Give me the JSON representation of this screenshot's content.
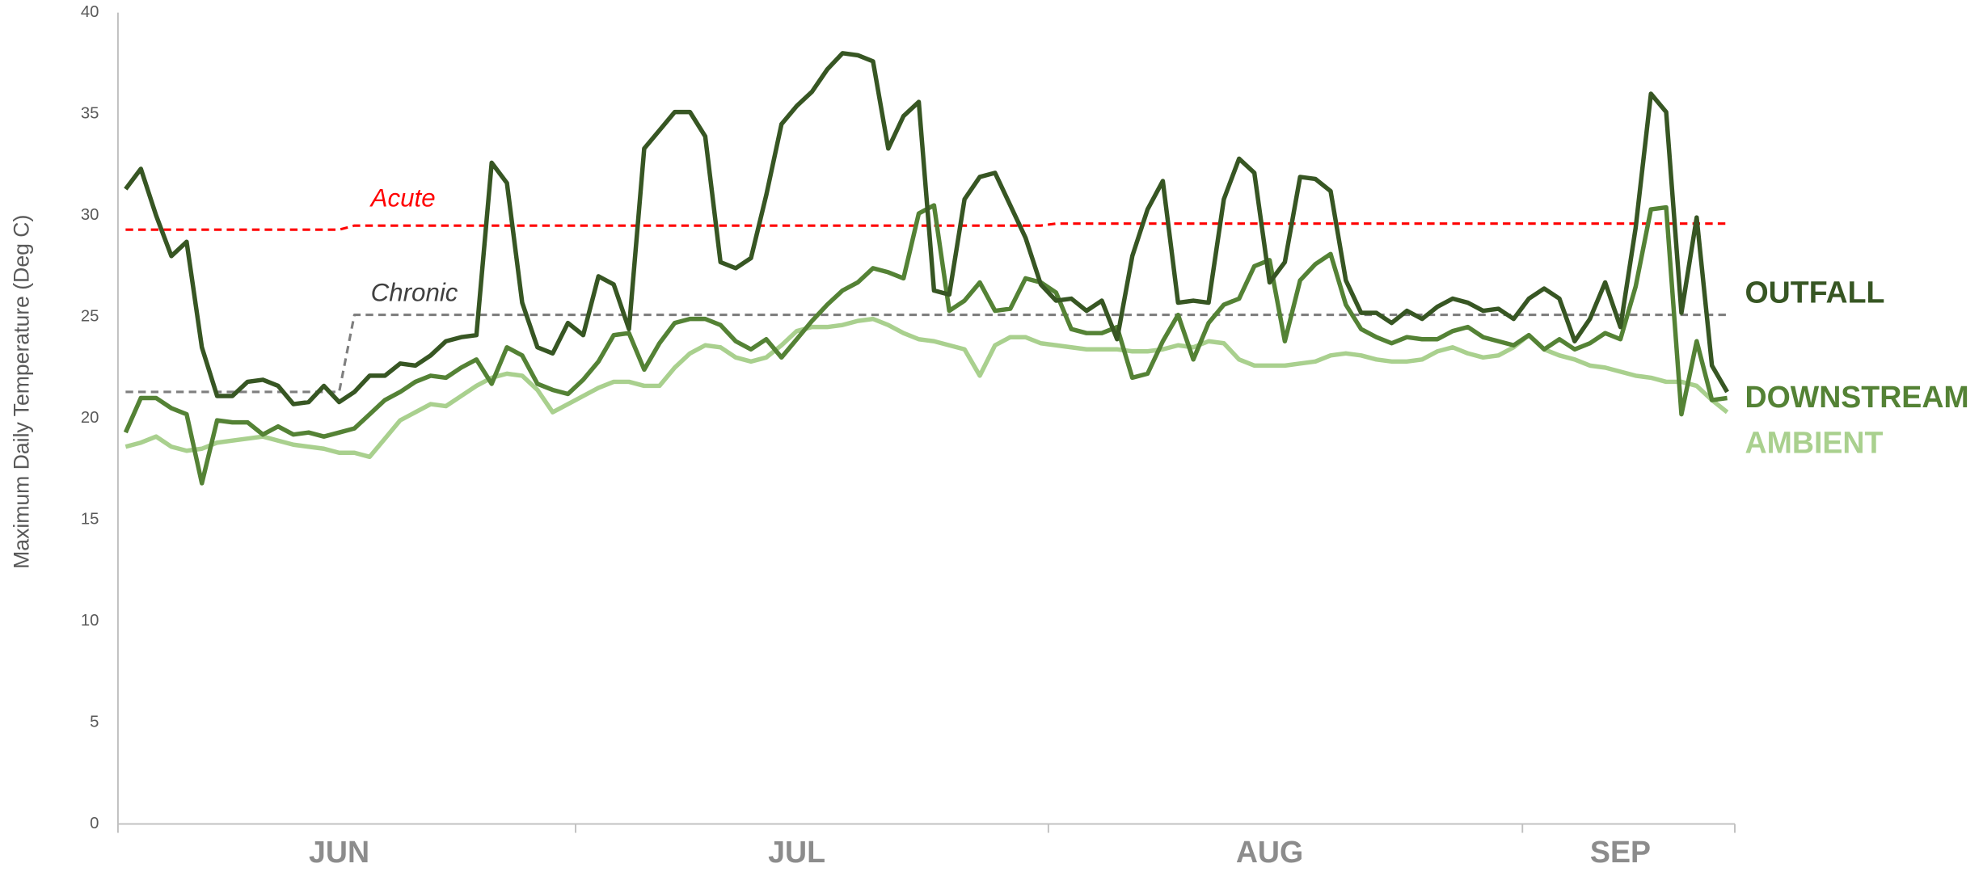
{
  "chart_data": {
    "type": "line",
    "y_label": "Maximum Daily Temperature (Deg C)",
    "categories": [
      null,
      null,
      null,
      null,
      null,
      null,
      null,
      null,
      null,
      null,
      null,
      null,
      null,
      null,
      "JUN",
      null,
      null,
      null,
      null,
      null,
      null,
      null,
      null,
      null,
      null,
      null,
      null,
      null,
      null,
      null,
      null,
      null,
      null,
      null,
      null,
      null,
      null,
      null,
      null,
      null,
      null,
      null,
      null,
      null,
      "JUL",
      null,
      null,
      null,
      null,
      null,
      null,
      null,
      null,
      null,
      null,
      null,
      null,
      null,
      null,
      null,
      null,
      null,
      null,
      null,
      null,
      null,
      null,
      null,
      null,
      null,
      null,
      null,
      null,
      null,
      null,
      "AUG",
      null,
      null,
      null,
      null,
      null,
      null,
      null,
      null,
      null,
      null,
      null,
      null,
      null,
      null,
      null,
      null,
      null,
      null,
      null,
      null,
      null,
      null,
      "SEP",
      null,
      null,
      null,
      null,
      null,
      null,
      null
    ],
    "ylim": [
      0,
      40
    ],
    "yticks": [
      0,
      5,
      10,
      15,
      20,
      25,
      30,
      35,
      40
    ],
    "grid": false,
    "series": [
      {
        "name": "OUTFALL",
        "color": "#375623",
        "line_style": "solid",
        "values": [
          31.3,
          32.3,
          30.0,
          28.0,
          28.7,
          23.5,
          21.1,
          21.1,
          21.8,
          21.9,
          21.6,
          20.7,
          20.8,
          21.6,
          20.8,
          21.3,
          22.1,
          22.1,
          22.7,
          22.6,
          23.1,
          23.8,
          24.0,
          24.1,
          32.6,
          31.6,
          25.7,
          23.5,
          23.2,
          24.7,
          24.1,
          27.0,
          26.6,
          24.4,
          33.3,
          34.2,
          35.1,
          35.1,
          33.9,
          27.7,
          27.4,
          27.9,
          31.0,
          34.5,
          35.4,
          36.1,
          37.2,
          38.0,
          37.9,
          37.6,
          33.3,
          34.9,
          35.6,
          26.3,
          26.1,
          30.8,
          31.9,
          32.1,
          30.5,
          28.9,
          26.6,
          25.8,
          25.9,
          25.3,
          25.8,
          23.9,
          28.0,
          30.3,
          31.7,
          25.7,
          25.8,
          25.7,
          30.8,
          32.8,
          32.1,
          26.7,
          27.7,
          31.9,
          31.8,
          31.2,
          26.8,
          25.2,
          25.2,
          24.7,
          25.3,
          24.9,
          25.5,
          25.9,
          25.7,
          25.3,
          25.4,
          24.9,
          25.9,
          26.4,
          25.9,
          23.8,
          24.9,
          26.7,
          24.5,
          29.4,
          36.0,
          35.1,
          25.2,
          29.9,
          22.6,
          21.3
        ]
      },
      {
        "name": "DOWNSTREAM",
        "color": "#548235",
        "line_style": "solid",
        "values": [
          19.3,
          21.0,
          21.0,
          20.5,
          20.2,
          16.8,
          19.9,
          19.8,
          19.8,
          19.2,
          19.6,
          19.2,
          19.3,
          19.1,
          19.3,
          19.5,
          20.2,
          20.9,
          21.3,
          21.8,
          22.1,
          22.0,
          22.5,
          22.9,
          21.7,
          23.5,
          23.1,
          21.7,
          21.4,
          21.2,
          21.9,
          22.8,
          24.1,
          24.2,
          22.4,
          23.7,
          24.7,
          24.9,
          24.9,
          24.6,
          23.8,
          23.4,
          23.9,
          23.0,
          23.9,
          24.8,
          25.6,
          26.3,
          26.7,
          27.4,
          27.2,
          26.9,
          30.1,
          30.5,
          25.3,
          25.8,
          26.7,
          25.3,
          25.4,
          26.9,
          26.7,
          26.2,
          24.4,
          24.2,
          24.2,
          24.5,
          22.0,
          22.2,
          23.8,
          25.1,
          22.9,
          24.7,
          25.6,
          25.9,
          27.5,
          27.8,
          23.8,
          26.8,
          27.6,
          28.1,
          25.6,
          24.4,
          24.0,
          23.7,
          24.0,
          23.9,
          23.9,
          24.3,
          24.5,
          24.0,
          23.8,
          23.6,
          24.1,
          23.4,
          23.9,
          23.4,
          23.7,
          24.2,
          23.9,
          26.5,
          30.3,
          30.4,
          20.2,
          23.8,
          20.9,
          21.0
        ]
      },
      {
        "name": "AMBIENT",
        "color": "#a9d08e",
        "line_style": "solid",
        "values": [
          18.6,
          18.8,
          19.1,
          18.6,
          18.4,
          18.5,
          18.8,
          18.9,
          19.0,
          19.1,
          18.9,
          18.7,
          18.6,
          18.5,
          18.3,
          18.3,
          18.1,
          19.0,
          19.9,
          20.3,
          20.7,
          20.6,
          21.1,
          21.6,
          22.0,
          22.2,
          22.1,
          21.4,
          20.3,
          20.7,
          21.1,
          21.5,
          21.8,
          21.8,
          21.6,
          21.6,
          22.5,
          23.2,
          23.6,
          23.5,
          23.0,
          22.8,
          23.0,
          23.6,
          24.3,
          24.5,
          24.5,
          24.6,
          24.8,
          24.9,
          24.6,
          24.2,
          23.9,
          23.8,
          23.6,
          23.4,
          22.1,
          23.6,
          24.0,
          24.0,
          23.7,
          23.6,
          23.5,
          23.4,
          23.4,
          23.4,
          23.3,
          23.3,
          23.4,
          23.6,
          23.5,
          23.8,
          23.7,
          22.9,
          22.6,
          22.6,
          22.6,
          22.7,
          22.8,
          23.1,
          23.2,
          23.1,
          22.9,
          22.8,
          22.8,
          22.9,
          23.3,
          23.5,
          23.2,
          23.0,
          23.1,
          23.5,
          24.1,
          23.4,
          23.1,
          22.9,
          22.6,
          22.5,
          22.3,
          22.1,
          22.0,
          21.8,
          21.8,
          21.6,
          20.9,
          20.3
        ]
      },
      {
        "name": "Acute",
        "color": "#ff0000",
        "line_style": "dashed",
        "values": [
          29.3,
          29.3,
          29.3,
          29.3,
          29.3,
          29.3,
          29.3,
          29.3,
          29.3,
          29.3,
          29.3,
          29.3,
          29.3,
          29.3,
          29.3,
          29.5,
          29.5,
          29.5,
          29.5,
          29.5,
          29.5,
          29.5,
          29.5,
          29.5,
          29.5,
          29.5,
          29.5,
          29.5,
          29.5,
          29.5,
          29.5,
          29.5,
          29.5,
          29.5,
          29.5,
          29.5,
          29.5,
          29.5,
          29.5,
          29.5,
          29.5,
          29.5,
          29.5,
          29.5,
          29.5,
          29.5,
          29.5,
          29.5,
          29.5,
          29.5,
          29.5,
          29.5,
          29.5,
          29.5,
          29.5,
          29.5,
          29.5,
          29.5,
          29.5,
          29.5,
          29.5,
          29.6,
          29.6,
          29.6,
          29.6,
          29.6,
          29.6,
          29.6,
          29.6,
          29.6,
          29.6,
          29.6,
          29.6,
          29.6,
          29.6,
          29.6,
          29.6,
          29.6,
          29.6,
          29.6,
          29.6,
          29.6,
          29.6,
          29.6,
          29.6,
          29.6,
          29.6,
          29.6,
          29.6,
          29.6,
          29.6,
          29.6,
          29.6,
          29.6,
          29.6,
          29.6,
          29.6,
          29.6,
          29.6,
          29.6,
          29.6,
          29.6,
          29.6,
          29.6,
          29.6,
          29.6
        ]
      },
      {
        "name": "Chronic",
        "color": "#7f7f7f",
        "line_style": "dashed",
        "values": [
          21.3,
          21.3,
          21.3,
          21.3,
          21.3,
          21.3,
          21.3,
          21.3,
          21.3,
          21.3,
          21.3,
          21.3,
          21.3,
          21.3,
          21.3,
          25.1,
          25.1,
          25.1,
          25.1,
          25.1,
          25.1,
          25.1,
          25.1,
          25.1,
          25.1,
          25.1,
          25.1,
          25.1,
          25.1,
          25.1,
          25.1,
          25.1,
          25.1,
          25.1,
          25.1,
          25.1,
          25.1,
          25.1,
          25.1,
          25.1,
          25.1,
          25.1,
          25.1,
          25.1,
          25.1,
          25.1,
          25.1,
          25.1,
          25.1,
          25.1,
          25.1,
          25.1,
          25.1,
          25.1,
          25.1,
          25.1,
          25.1,
          25.1,
          25.1,
          25.1,
          25.1,
          25.1,
          25.1,
          25.1,
          25.1,
          25.1,
          25.1,
          25.1,
          25.1,
          25.1,
          25.1,
          25.1,
          25.1,
          25.1,
          25.1,
          25.1,
          25.1,
          25.1,
          25.1,
          25.1,
          25.1,
          25.1,
          25.1,
          25.1,
          25.1,
          25.1,
          25.1,
          25.1,
          25.1,
          25.1,
          25.1,
          25.1,
          25.1,
          25.1,
          25.1,
          25.1,
          25.1,
          25.1,
          25.1,
          25.1,
          25.1,
          25.1,
          25.1,
          25.1,
          25.1,
          25.1
        ]
      }
    ]
  }
}
